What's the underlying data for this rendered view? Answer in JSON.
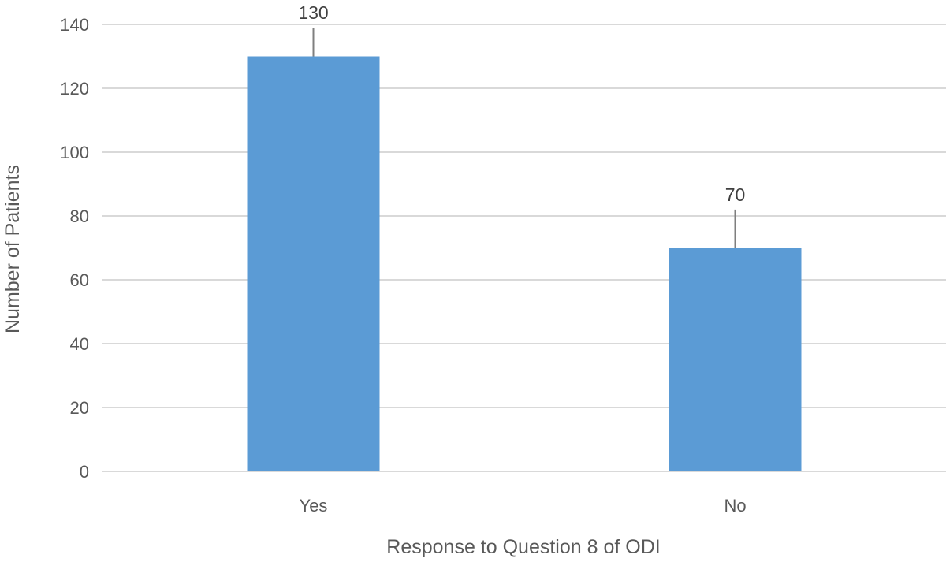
{
  "chart_data": {
    "type": "bar",
    "title": "",
    "xlabel": "Response to Question 8 of ODI",
    "ylabel": "Number of Patients",
    "categories": [
      "Yes",
      "No"
    ],
    "values": [
      130,
      70
    ],
    "error_upper": [
      139,
      82
    ],
    "data_labels": [
      "130",
      "70"
    ],
    "ylim": [
      0,
      140
    ],
    "yticks": [
      0,
      20,
      40,
      60,
      80,
      100,
      120,
      140
    ],
    "ytick_labels": [
      "0",
      "20",
      "40",
      "60",
      "80",
      "100",
      "120",
      "140"
    ],
    "grid": true,
    "legend": "none",
    "colors": {
      "bar": "#5B9BD5",
      "grid": "#D9D9D9",
      "error_bar": "#7F7F7F",
      "text": "#595959"
    }
  }
}
